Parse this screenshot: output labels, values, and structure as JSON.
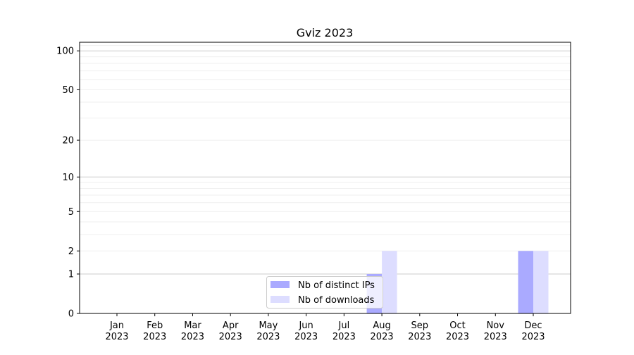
{
  "chart_data": {
    "type": "bar",
    "title": "Gviz 2023",
    "xlabel": "",
    "ylabel": "",
    "y_scale": "symlog",
    "ylim": [
      0,
      116
    ],
    "yticks": [
      0,
      1,
      2,
      5,
      10,
      20,
      50,
      100
    ],
    "grid": true,
    "legend_position": "lower-center",
    "categories": [
      "Jan\n2023",
      "Feb\n2023",
      "Mar\n2023",
      "Apr\n2023",
      "May\n2023",
      "Jun\n2023",
      "Jul\n2023",
      "Aug\n2023",
      "Sep\n2023",
      "Oct\n2023",
      "Nov\n2023",
      "Dec\n2023"
    ],
    "series": [
      {
        "name": "Nb of distinct IPs",
        "color": "#aaaaff",
        "values": [
          0,
          0,
          0,
          0,
          0,
          0,
          0,
          1,
          0,
          0,
          0,
          2
        ]
      },
      {
        "name": "Nb of downloads",
        "color": "#ddddff",
        "values": [
          0,
          0,
          0,
          0,
          0,
          0,
          0,
          2,
          0,
          0,
          0,
          2
        ]
      }
    ]
  }
}
